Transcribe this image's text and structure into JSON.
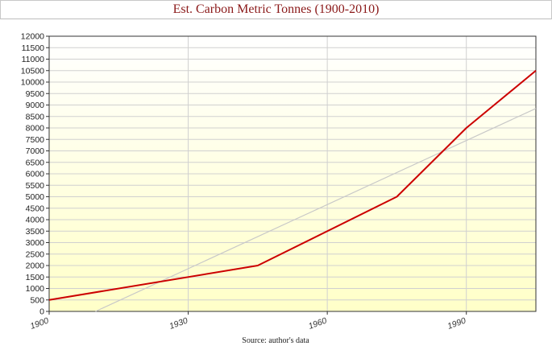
{
  "chart_data": {
    "type": "line",
    "title": "Est. Carbon Metric Tonnes (1900-2010)",
    "source": "Source: author's data",
    "xlim": [
      1900,
      2005
    ],
    "ylim": [
      0,
      12000
    ],
    "y_ticks": [
      0,
      500,
      1000,
      1500,
      2000,
      2500,
      3000,
      3500,
      4000,
      4500,
      5000,
      5500,
      6000,
      6500,
      7000,
      7500,
      8000,
      8500,
      9000,
      9500,
      10000,
      10500,
      11000,
      11500,
      12000
    ],
    "x_ticks": [
      1900,
      1930,
      1960,
      1990
    ],
    "series": [
      {
        "values": [
          [
            1900,
            500
          ],
          [
            1945,
            2000
          ],
          [
            1975,
            5000
          ],
          [
            1990,
            8000
          ],
          [
            2005,
            10500
          ]
        ]
      },
      {
        "values": [
          [
            1910,
            0
          ],
          [
            2005,
            8850
          ]
        ]
      }
    ],
    "grid": true,
    "colors": {
      "main_line": "#cc0000",
      "trend_line": "#c8c8c8",
      "plot_bg": "#ffffcc",
      "grid": "#d0d0d0",
      "title_text": "#8b1a1a"
    }
  }
}
